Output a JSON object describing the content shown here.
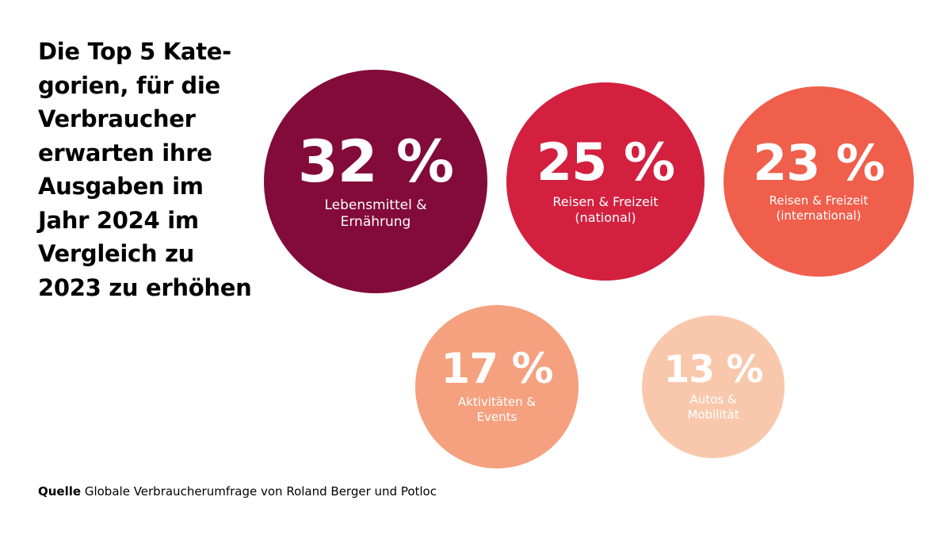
{
  "title_lines": [
    "Die Top 5 Kate-",
    "gorien, für die",
    "Verbraucher",
    "erwarten ihre",
    "Ausgaben im",
    "Jahr 2024 im",
    "Vergleich zu",
    "2023 zu erhöhen"
  ],
  "chart_data": {
    "type": "bubble",
    "title": "Die Top 5 Kategorien, für die Verbraucher erwarten ihre Ausgaben im Jahr 2024 im Vergleich zu 2023 zu erhöhen",
    "unit": "%",
    "categories": [
      [
        "Lebensmittel &",
        "Ernährung"
      ],
      [
        "Reisen & Freizeit",
        "(national)"
      ],
      [
        "Reisen & Freizeit",
        "(international)"
      ],
      [
        "Aktivitäten &",
        "Events"
      ],
      [
        "Autos &",
        "Mobilität"
      ]
    ],
    "values": [
      32,
      25,
      23,
      17,
      13
    ],
    "value_labels": [
      "32 %",
      "25 %",
      "23 %",
      "17 %",
      "13 %"
    ],
    "colors": [
      "#820b3a",
      "#d3203f",
      "#f05e4c",
      "#f5a07e",
      "#f9c8ac"
    ]
  },
  "source": {
    "label": "Quelle",
    "text": "Globale Verbraucherumfrage von Roland Berger und Potloc"
  }
}
